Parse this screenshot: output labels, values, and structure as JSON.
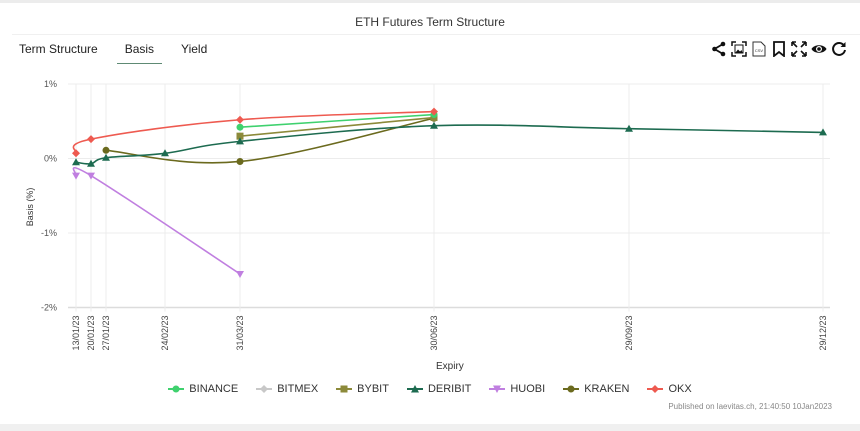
{
  "header": {
    "title": "ETH Futures Term Structure"
  },
  "tabs": [
    {
      "label": "Term Structure",
      "active": false
    },
    {
      "label": "Basis",
      "active": true
    },
    {
      "label": "Yield",
      "active": false
    }
  ],
  "toolbar": {
    "icons": [
      "share-icon",
      "image-export-icon",
      "csv-export-icon",
      "bookmark-icon",
      "fullscreen-icon",
      "eye-icon",
      "refresh-icon"
    ]
  },
  "colors": {
    "BINANCE": "#3fd16e",
    "BITMEX": "#c8c8c8",
    "BYBIT": "#8c8a3a",
    "DERIBIT": "#1d6b50",
    "HUOBI": "#c07fe0",
    "KRAKEN": "#6b6a1e",
    "OKX": "#ee5a50"
  },
  "chart_data": {
    "type": "line",
    "title": "ETH Futures Term Structure",
    "xlabel": "Expiry",
    "ylabel": "Basis (%)",
    "ylim": [
      -2,
      1
    ],
    "yticks": [
      "1%",
      "0%",
      "-1%",
      "-2%"
    ],
    "x": [
      "13/01/23",
      "20/01/23",
      "27/01/23",
      "24/02/23",
      "31/03/23",
      "30/06/23",
      "29/09/23",
      "29/12/23"
    ],
    "grid": true,
    "legend_position": "bottom",
    "series": [
      {
        "name": "BINANCE",
        "marker": "circle",
        "values": [
          null,
          null,
          null,
          null,
          0.42,
          0.59,
          null,
          null
        ]
      },
      {
        "name": "BITMEX",
        "marker": "diamond",
        "values": [
          null,
          null,
          null,
          null,
          null,
          null,
          null,
          null
        ]
      },
      {
        "name": "BYBIT",
        "marker": "square",
        "values": [
          null,
          null,
          null,
          null,
          0.3,
          0.55,
          null,
          null
        ]
      },
      {
        "name": "DERIBIT",
        "marker": "triangle-up",
        "values": [
          -0.05,
          -0.07,
          0.01,
          0.07,
          0.23,
          0.44,
          0.4,
          0.35
        ]
      },
      {
        "name": "HUOBI",
        "marker": "triangle-down",
        "values": [
          -0.23,
          -0.23,
          null,
          null,
          -1.55,
          null,
          null,
          null
        ]
      },
      {
        "name": "KRAKEN",
        "marker": "circle",
        "values": [
          null,
          null,
          0.11,
          null,
          -0.04,
          0.54,
          null,
          null
        ]
      },
      {
        "name": "OKX",
        "marker": "diamond",
        "values": [
          0.07,
          0.26,
          null,
          null,
          0.52,
          0.63,
          null,
          null
        ]
      }
    ]
  },
  "legend": [
    {
      "label": "BINANCE"
    },
    {
      "label": "BITMEX"
    },
    {
      "label": "BYBIT"
    },
    {
      "label": "DERIBIT"
    },
    {
      "label": "HUOBI"
    },
    {
      "label": "KRAKEN"
    },
    {
      "label": "OKX"
    }
  ],
  "footer": {
    "credit": "Published on laevitas.ch, 21:40:50 10Jan2023"
  }
}
